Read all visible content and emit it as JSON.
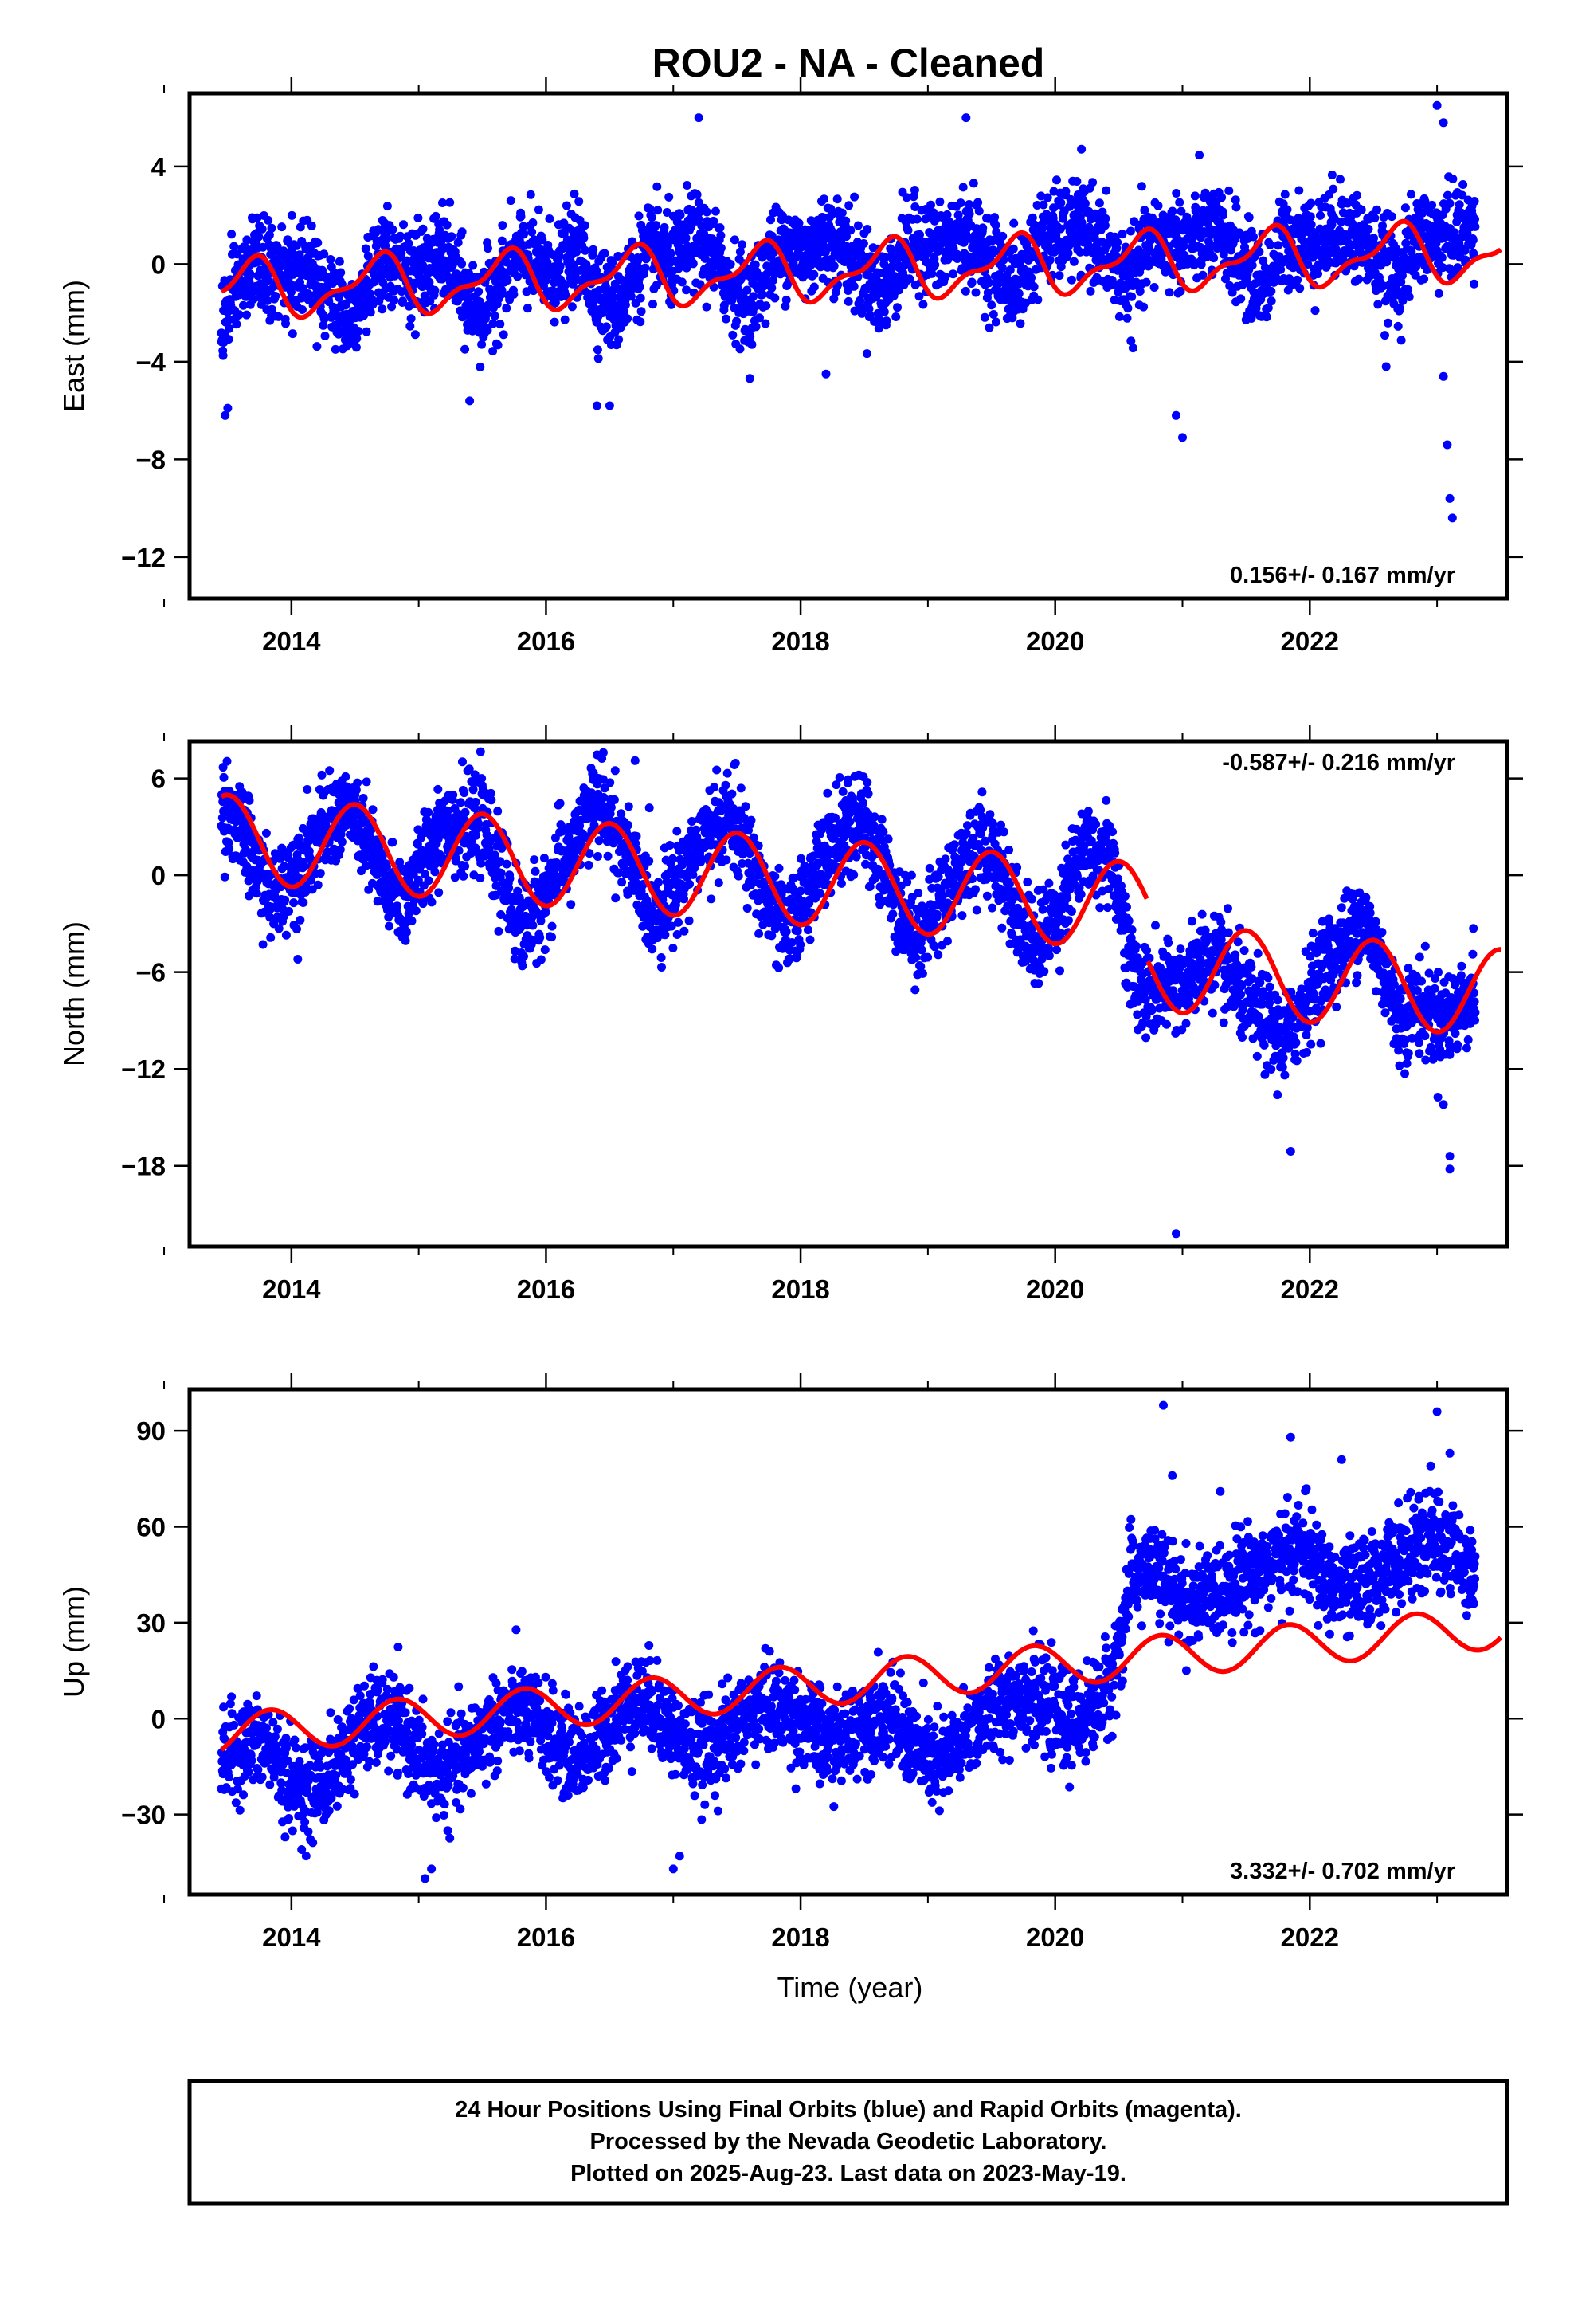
{
  "title": "ROU2  - NA - Cleaned",
  "xlabel": "Time (year)",
  "colors": {
    "final_orbits": "#0000ff",
    "model_fit": "#ff0000",
    "axes": "#000000"
  },
  "footer": {
    "line1": "24 Hour Positions Using Final Orbits (blue) and Rapid Orbits (magenta).",
    "line2": "Processed by the Nevada Geodetic Laboratory.",
    "line3": "Plotted on 2025-Aug-23. Last data on 2023-May-19."
  },
  "chart_data": [
    {
      "type": "scatter",
      "panel": "east",
      "ylabel": "East (mm)",
      "rate_label": "0.156+/- 0.167 mm/yr",
      "rate_position": "bottom-right",
      "xlim": [
        2013.2,
        2023.55
      ],
      "ylim": [
        -13.7,
        7
      ],
      "xticks": [
        2014,
        2016,
        2018,
        2020,
        2022
      ],
      "yticks": [
        4,
        0,
        -4,
        -8,
        -12
      ],
      "grid": false,
      "series": [
        {
          "name": "Final Orbits",
          "role": "daily positions (blue)",
          "x": [
            2013.45,
            2013.55,
            2013.7,
            2013.85,
            2014.0,
            2014.15,
            2014.3,
            2014.45,
            2014.6,
            2014.75,
            2014.9,
            2015.05,
            2015.2,
            2015.35,
            2015.5,
            2015.65,
            2015.8,
            2015.95,
            2016.1,
            2016.25,
            2016.4,
            2016.55,
            2016.7,
            2016.85,
            2017.0,
            2017.15,
            2017.3,
            2017.45,
            2017.6,
            2017.75,
            2017.9,
            2018.05,
            2018.2,
            2018.35,
            2018.5,
            2018.65,
            2018.8,
            2018.95,
            2019.1,
            2019.25,
            2019.4,
            2019.55,
            2019.7,
            2019.85,
            2020.0,
            2020.15,
            2020.3,
            2020.45,
            2020.6,
            2020.75,
            2020.9,
            2021.05,
            2021.2,
            2021.35,
            2021.5,
            2021.65,
            2021.8,
            2021.95,
            2022.1,
            2022.25,
            2022.4,
            2022.55,
            2022.7,
            2022.85,
            2023.0,
            2023.15,
            2023.3
          ],
          "y": [
            -2.5,
            -1.3,
            0.1,
            -0.4,
            -0.5,
            0.2,
            -1.4,
            -2.1,
            -0.8,
            0.2,
            -0.3,
            -0.4,
            0.5,
            -1.2,
            -2.0,
            -0.6,
            0.4,
            -0.2,
            -0.3,
            0.6,
            -1.0,
            -1.8,
            -0.2,
            0.6,
            0.0,
            1.1,
            0.5,
            -0.8,
            -1.6,
            0.1,
            0.8,
            0.3,
            1.2,
            0.6,
            -0.4,
            -1.2,
            0.4,
            0.9,
            0.5,
            1.3,
            0.7,
            -0.2,
            -1.0,
            0.8,
            1.1,
            1.5,
            1.2,
            0.0,
            -0.8,
            0.9,
            1.0,
            0.8,
            1.4,
            0.9,
            -0.2,
            -0.9,
            1.0,
            0.9,
            1.0,
            1.5,
            1.0,
            0.1,
            -0.6,
            1.2,
            1.0,
            1.3,
            1.4
          ],
          "outliers_x": [
            2013.48,
            2013.5,
            2015.4,
            2016.4,
            2016.5,
            2017.2,
            2018.2,
            2019.3,
            2020.95,
            2021.0,
            2022.6,
            2023.0,
            2023.05,
            2023.08,
            2023.1,
            2023.12,
            2023.05
          ],
          "outliers_y": [
            -6.2,
            -5.9,
            -5.6,
            -5.8,
            -5.8,
            6.0,
            -4.5,
            6.0,
            -6.2,
            -7.1,
            -4.2,
            6.5,
            -4.6,
            -7.4,
            -9.6,
            -10.4,
            5.8
          ]
        },
        {
          "name": "Model fit",
          "role": "trend + seasonal model (red)",
          "linear": {
            "x0": 2013.45,
            "y0": -1.05,
            "rate": 0.156
          },
          "annual": {
            "amplitude": 1.05,
            "phase_year": 0.42
          },
          "semiannual": {
            "amplitude": 0.45,
            "phase_year": 0.15
          },
          "x_range": [
            2013.45,
            2023.5
          ]
        }
      ]
    },
    {
      "type": "scatter",
      "panel": "north",
      "ylabel": "North (mm)",
      "rate_label": "-0.587+/- 0.216 mm/yr",
      "rate_position": "top-right",
      "xlim": [
        2013.2,
        2023.55
      ],
      "ylim": [
        -23,
        8.3
      ],
      "xticks": [
        2014,
        2016,
        2018,
        2020,
        2022
      ],
      "yticks": [
        6,
        0,
        -6,
        -12,
        -18
      ],
      "grid": false,
      "series": [
        {
          "name": "Final Orbits",
          "role": "daily positions (blue)",
          "x": [
            2013.45,
            2013.55,
            2013.7,
            2013.85,
            2014.0,
            2014.15,
            2014.3,
            2014.45,
            2014.6,
            2014.75,
            2014.9,
            2015.05,
            2015.2,
            2015.35,
            2015.5,
            2015.65,
            2015.8,
            2015.95,
            2016.1,
            2016.25,
            2016.4,
            2016.55,
            2016.7,
            2016.85,
            2017.0,
            2017.15,
            2017.3,
            2017.45,
            2017.6,
            2017.75,
            2017.9,
            2018.05,
            2018.2,
            2018.35,
            2018.5,
            2018.65,
            2018.8,
            2018.95,
            2019.1,
            2019.25,
            2019.4,
            2019.55,
            2019.7,
            2019.85,
            2020.0,
            2020.15,
            2020.3,
            2020.45,
            2020.6,
            2020.75,
            2020.9,
            2021.05,
            2021.2,
            2021.35,
            2021.5,
            2021.65,
            2021.8,
            2021.95,
            2022.1,
            2022.25,
            2022.4,
            2022.55,
            2022.7,
            2022.85,
            2023.0,
            2023.15,
            2023.3
          ],
          "y": [
            4.6,
            3.5,
            1.0,
            -1.5,
            0.0,
            1.8,
            3.0,
            4.2,
            2.0,
            -1.0,
            -1.5,
            1.0,
            3.5,
            2.8,
            3.2,
            0.0,
            -3.2,
            -2.0,
            0.5,
            2.2,
            4.5,
            2.8,
            0.0,
            -2.5,
            -1.0,
            1.5,
            2.5,
            3.8,
            1.0,
            -2.0,
            -3.5,
            -1.0,
            1.5,
            2.8,
            3.2,
            0.5,
            -2.5,
            -4.0,
            -1.5,
            0.5,
            1.8,
            1.0,
            -2.5,
            -4.5,
            -2.5,
            0.5,
            1.5,
            1.2,
            -6.0,
            -7.5,
            -7.0,
            -6.5,
            -5.0,
            -6.0,
            -7.8,
            -9.0,
            -10.5,
            -8.0,
            -5.5,
            -4.5,
            -2.5,
            -5.0,
            -9.0,
            -8.0,
            -9.0,
            -8.5,
            -7.0
          ],
          "outliers_x": [
            2014.05,
            2016.45,
            2016.7,
            2020.95,
            2021.85,
            2023.05,
            2023.1,
            2023.1
          ],
          "outliers_y": [
            -5.2,
            7.6,
            7.1,
            -22.2,
            -17.1,
            -14.2,
            -17.4,
            -18.2
          ]
        },
        {
          "name": "Model fit",
          "role": "trend + seasonal model (red)",
          "linear": {
            "x0": 2013.45,
            "y0": 2.3,
            "rate": -0.587
          },
          "annual": {
            "amplitude": 2.7,
            "phase_year": 0.25
          },
          "semiannual": {
            "amplitude": 0.0,
            "phase_year": 0.0
          },
          "offsets": [
            {
              "x": 2020.72,
              "dy": -3.7
            }
          ],
          "x_range": [
            2013.45,
            2023.5
          ]
        }
      ]
    },
    {
      "type": "scatter",
      "panel": "up",
      "ylabel": "Up (mm)",
      "rate_label": "3.332+/- 0.702 mm/yr",
      "rate_position": "bottom-right",
      "xlim": [
        2013.2,
        2023.55
      ],
      "ylim": [
        -55,
        103
      ],
      "xticks": [
        2014,
        2016,
        2018,
        2020,
        2022
      ],
      "yticks": [
        90,
        60,
        30,
        0,
        -30
      ],
      "grid": false,
      "series": [
        {
          "name": "Final Orbits",
          "role": "daily positions (blue)",
          "x": [
            2013.45,
            2013.55,
            2013.7,
            2013.85,
            2014.0,
            2014.15,
            2014.3,
            2014.45,
            2014.6,
            2014.75,
            2014.9,
            2015.05,
            2015.2,
            2015.35,
            2015.5,
            2015.65,
            2015.8,
            2015.95,
            2016.1,
            2016.25,
            2016.4,
            2016.55,
            2016.7,
            2016.85,
            2017.0,
            2017.15,
            2017.3,
            2017.45,
            2017.6,
            2017.75,
            2017.9,
            2018.05,
            2018.2,
            2018.35,
            2018.5,
            2018.65,
            2018.8,
            2018.95,
            2019.1,
            2019.25,
            2019.4,
            2019.55,
            2019.7,
            2019.85,
            2020.0,
            2020.15,
            2020.3,
            2020.45,
            2020.6,
            2020.75,
            2020.9,
            2021.05,
            2021.2,
            2021.35,
            2021.5,
            2021.65,
            2021.8,
            2021.95,
            2022.1,
            2022.25,
            2022.4,
            2022.55,
            2022.7,
            2022.85,
            2023.0,
            2023.15,
            2023.3
          ],
          "y": [
            -14,
            -10,
            -8,
            -10,
            -20,
            -22,
            -18,
            -8,
            -2,
            0,
            -5,
            -15,
            -18,
            -12,
            -5,
            0,
            3,
            -2,
            -8,
            -12,
            -8,
            2,
            6,
            4,
            -4,
            -10,
            -10,
            -4,
            2,
            4,
            2,
            -2,
            -8,
            -6,
            0,
            2,
            -4,
            -12,
            -15,
            -8,
            0,
            4,
            8,
            6,
            0,
            -2,
            4,
            12,
            44,
            48,
            40,
            36,
            38,
            42,
            45,
            48,
            50,
            54,
            44,
            40,
            42,
            46,
            50,
            54,
            56,
            52,
            46
          ],
          "outliers_x": [
            2013.95,
            2015.05,
            2015.1,
            2017.0,
            2017.05,
            2020.85,
            2020.92,
            2021.85,
            2022.25,
            2022.95,
            2023.0,
            2023.1
          ],
          "outliers_y": [
            -37,
            -50,
            -47,
            -47,
            -43,
            98,
            76,
            88,
            81,
            79,
            96,
            83
          ]
        },
        {
          "name": "Model fit",
          "role": "trend + seasonal model (red)",
          "linear": {
            "x0": 2013.45,
            "y0": -5.0,
            "rate": 3.332
          },
          "annual": {
            "amplitude": 6.5,
            "phase_year": 0.58
          },
          "semiannual": {
            "amplitude": 0.0,
            "phase_year": 0.0
          },
          "offsets": [],
          "x_range": [
            2013.45,
            2023.5
          ]
        }
      ]
    }
  ]
}
